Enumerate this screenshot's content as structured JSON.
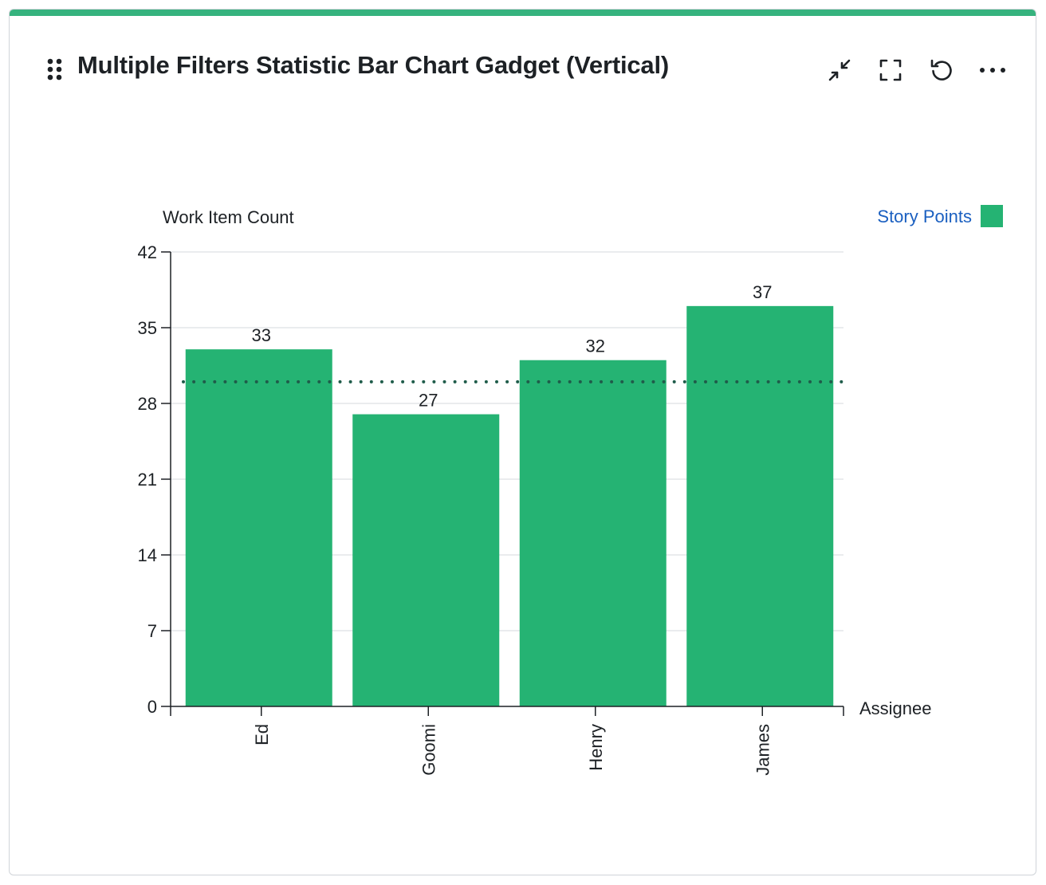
{
  "gadget": {
    "title": "Multiple Filters Statistic Bar Chart Gadget (Vertical)",
    "accent_color": "#36b37e",
    "actions": [
      {
        "name": "minimize-button",
        "icon": "minimize-arrows-icon"
      },
      {
        "name": "fullscreen-button",
        "icon": "fullscreen-icon"
      },
      {
        "name": "refresh-button",
        "icon": "refresh-icon"
      },
      {
        "name": "more-actions-button",
        "icon": "more-horizontal-icon"
      }
    ]
  },
  "chart_data": {
    "type": "bar",
    "title": "",
    "ylabel": "Work Item Count",
    "xlabel": "Assignee",
    "categories": [
      "Ed",
      "Goomi",
      "Henry",
      "James"
    ],
    "series": [
      {
        "name": "Story Points",
        "values": [
          33,
          27,
          32,
          37
        ],
        "color": "#25b373"
      }
    ],
    "data_labels": [
      "33",
      "27",
      "32",
      "37"
    ],
    "yticks": [
      0,
      7,
      14,
      21,
      28,
      35,
      42
    ],
    "ylim": [
      0,
      42
    ],
    "average_line": {
      "value": 30,
      "style": "dotted",
      "color": "#1f5c4a"
    },
    "grid": true,
    "legend": {
      "position": "top-right",
      "label_color": "#1a5fc0"
    }
  }
}
